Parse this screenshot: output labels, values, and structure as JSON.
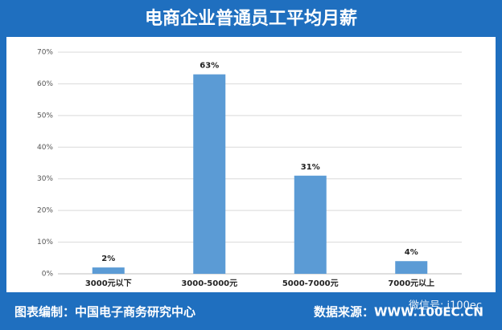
{
  "chart_data": {
    "type": "bar",
    "title": "电商企业普通员工平均月薪",
    "categories": [
      "3000元以下",
      "3000-5000元",
      "5000-7000元",
      "7000元以上"
    ],
    "values": [
      2,
      63,
      31,
      4
    ],
    "value_labels": [
      "2%",
      "63%",
      "31%",
      "4%"
    ],
    "color": "#5b9bd5",
    "ylim": [
      0,
      70
    ],
    "yticks": [
      {
        "value": 0,
        "label": "0%"
      },
      {
        "value": 10,
        "label": "10%"
      },
      {
        "value": 20,
        "label": "20%"
      },
      {
        "value": 30,
        "label": "30%"
      },
      {
        "value": 40,
        "label": "40%"
      },
      {
        "value": 50,
        "label": "50%"
      },
      {
        "value": 60,
        "label": "60%"
      },
      {
        "value": 70,
        "label": "70%"
      }
    ],
    "grid": true
  },
  "footer": {
    "compiler": "图表编制：中国电子商务研究中心",
    "source": "数据来源：WWW.100EC.CN",
    "watermark": "微信号: i100ec"
  }
}
